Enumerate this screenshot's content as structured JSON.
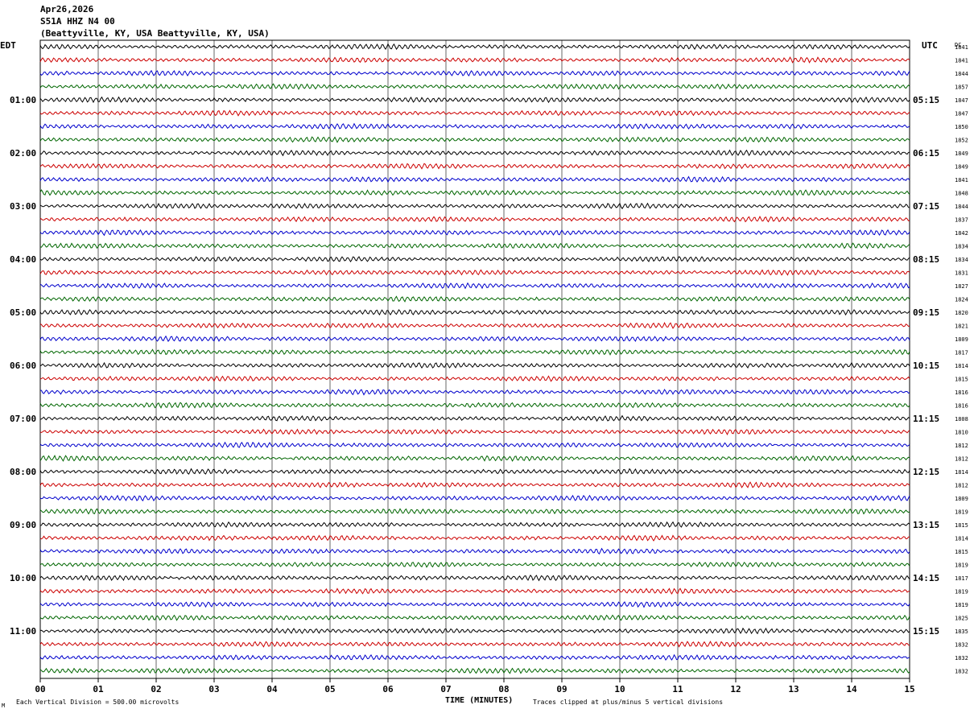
{
  "header": {
    "date": "Apr26,2026",
    "channel": "S51A HHZ N4 00",
    "location": "(Beattyville, KY, USA Beattyville, KY, USA)"
  },
  "left_zone": "EDT",
  "right_zone": "UTC",
  "dc_label": "DC",
  "footer": {
    "scale_note": "Each Vertical Division =  500.00 microvolts",
    "xlabel": "TIME (MINUTES)",
    "clip_note": "Traces clipped at plus/minus 5 vertical divisions",
    "corner_mark": "M"
  },
  "colors": {
    "trace_cycle": [
      "#000000",
      "#cc0000",
      "#0000cc",
      "#006600"
    ],
    "grid": "#000000"
  },
  "chart_data": {
    "type": "line",
    "title": "",
    "xlabel": "TIME (MINUTES)",
    "xlim": [
      0,
      15
    ],
    "x_ticks": [
      "00",
      "01",
      "02",
      "03",
      "04",
      "05",
      "06",
      "07",
      "08",
      "09",
      "10",
      "11",
      "12",
      "13",
      "14",
      "15"
    ],
    "rows_per_hour": 4,
    "row_count": 48,
    "left_hour_labels": [
      "01:00",
      "02:00",
      "03:00",
      "04:00",
      "05:00",
      "06:00",
      "07:00",
      "08:00",
      "09:00",
      "10:00",
      "11:00"
    ],
    "right_hour_labels": [
      "05:15",
      "06:15",
      "07:15",
      "08:15",
      "09:15",
      "10:15",
      "11:15",
      "12:15",
      "13:15",
      "14:15",
      "15:15"
    ],
    "dc_offsets": [
      1841,
      1841,
      1844,
      1857,
      1847,
      1847,
      1850,
      1852,
      1849,
      1849,
      1841,
      1848,
      1844,
      1837,
      1842,
      1834,
      1834,
      1831,
      1827,
      1824,
      1820,
      1821,
      1809,
      1817,
      1814,
      1815,
      1816,
      1816,
      1808,
      1810,
      1812,
      1812,
      1814,
      1812,
      1809,
      1819,
      1815,
      1814,
      1815,
      1819,
      1817,
      1819,
      1819,
      1825,
      1835,
      1832,
      1832,
      1832
    ]
  }
}
